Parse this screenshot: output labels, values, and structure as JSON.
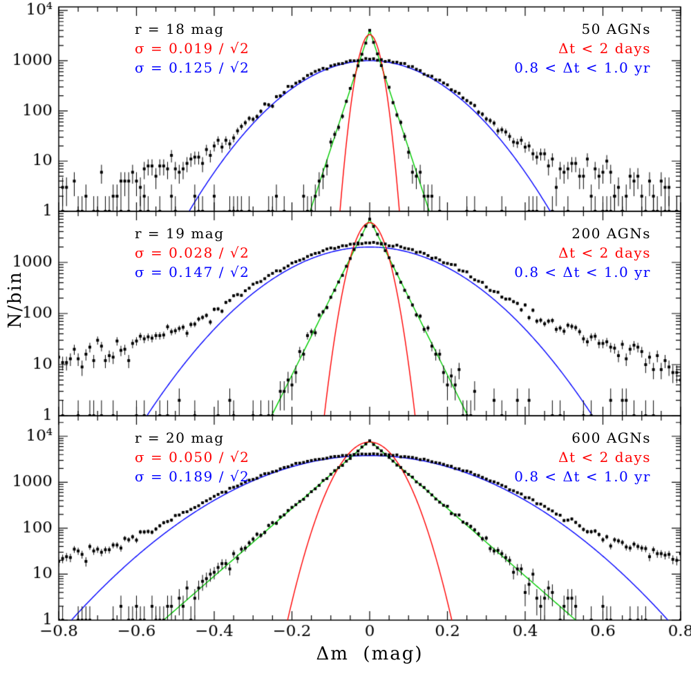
{
  "figure": {
    "background": "#ffffff",
    "description": "Histograms of AGN magnitude differences at short and long time lags with Gaussian/exponential fits, three magnitude bins, log y-axes"
  },
  "chart_data": {
    "type": "scatter",
    "subtype": "log-histogram-with-fit-curves",
    "xlabel": "Δm  (mag)",
    "ylabel": "N/bin",
    "xlim": [
      -0.8,
      0.8
    ],
    "bin_width": 0.01,
    "x_major_tick_step": 0.2,
    "x_minor_tick_step": 0.05,
    "xtick_values": [
      -0.8,
      -0.6,
      -0.4,
      -0.2,
      0,
      0.2,
      0.4,
      0.6,
      0.8
    ],
    "xtick_labels": [
      "−0.8",
      "−0.6",
      "−0.4",
      "−0.2",
      "0",
      "0.2",
      "0.4",
      "0.6",
      "0.8"
    ],
    "colors": {
      "data_points": "#000000",
      "short_lag_gaussian_fit": "#ff0000",
      "short_lag_exponential_fit": "#00cc00",
      "long_lag_gaussian_fit": "#0000ff"
    },
    "panels": [
      {
        "name": "r-18-mag",
        "ylim": [
          1,
          11750
        ],
        "ytick_labels": [
          {
            "value": 10000,
            "label": "10⁴"
          },
          {
            "value": 1000,
            "label": "1000"
          },
          {
            "value": 100,
            "label": "100"
          },
          {
            "value": 10,
            "label": "10"
          },
          {
            "value": 1,
            "label": "1"
          }
        ],
        "annotations_left": [
          {
            "text": "r = 18 mag",
            "color": "#000000"
          },
          {
            "text": "σ = 0.019 / √2",
            "color": "#ff0000"
          },
          {
            "text": "σ = 0.125 / √2",
            "color": "#0000ff"
          }
        ],
        "annotations_right": [
          {
            "text": "50 AGNs",
            "color": "#000000"
          },
          {
            "text": "Δt < 2 days",
            "color": "#ff0000"
          },
          {
            "text": "0.8 < Δt < 1.0 yr",
            "color": "#0000ff"
          }
        ],
        "curves": [
          {
            "id": "long-lag-gaussian",
            "color": "#0000ff",
            "type": "gaussian",
            "peak": 1000,
            "sigma": 0.125
          },
          {
            "id": "short-lag-exponential",
            "color": "#00cc00",
            "type": "laplace",
            "peak": 4000,
            "scale": 0.0185
          },
          {
            "id": "short-lag-gaussian",
            "color": "#ff0000",
            "type": "gaussian",
            "peak": 3300,
            "sigma": 0.019
          }
        ],
        "histograms": [
          {
            "id": "long-lag-data",
            "seed": 101,
            "model": {
              "gaussian": {
                "peak": 1000,
                "sigma": 0.125
              },
              "wing": {
                "peak": 70,
                "scale": 0.22
              },
              "floor": 0.05
            }
          },
          {
            "id": "short-lag-data",
            "seed": 202,
            "model": {
              "laplace": {
                "peak": 4000,
                "scale": 0.0185
              },
              "floor": 0.35
            }
          }
        ]
      },
      {
        "name": "r-19-mag",
        "ylim": [
          1,
          10000
        ],
        "ytick_labels": [
          {
            "value": 1000,
            "label": "1000"
          },
          {
            "value": 100,
            "label": "100"
          },
          {
            "value": 10,
            "label": "10"
          },
          {
            "value": 1,
            "label": "1"
          }
        ],
        "annotations_left": [
          {
            "text": "r = 19 mag",
            "color": "#000000"
          },
          {
            "text": "σ = 0.028 / √2",
            "color": "#ff0000"
          },
          {
            "text": "σ = 0.147 / √2",
            "color": "#0000ff"
          }
        ],
        "annotations_right": [
          {
            "text": "200 AGNs",
            "color": "#000000"
          },
          {
            "text": "Δt < 2 days",
            "color": "#ff0000"
          },
          {
            "text": "0.8 < Δt < 1.0 yr",
            "color": "#0000ff"
          }
        ],
        "curves": [
          {
            "id": "long-lag-gaussian",
            "color": "#0000ff",
            "type": "gaussian",
            "peak": 2000,
            "sigma": 0.147
          },
          {
            "id": "short-lag-exponential",
            "color": "#00cc00",
            "type": "laplace",
            "peak": 7000,
            "scale": 0.0285
          },
          {
            "id": "short-lag-gaussian",
            "color": "#ff0000",
            "type": "gaussian",
            "peak": 6000,
            "sigma": 0.028
          }
        ],
        "histograms": [
          {
            "id": "long-lag-data",
            "seed": 303,
            "model": {
              "gaussian": {
                "peak": 2000,
                "sigma": 0.147
              },
              "wing": {
                "peak": 400,
                "scale": 0.22
              },
              "floor": 0.05
            }
          },
          {
            "id": "short-lag-data",
            "seed": 404,
            "model": {
              "laplace": {
                "peak": 7000,
                "scale": 0.0285
              },
              "floor": 0.35
            }
          }
        ]
      },
      {
        "name": "r-20-mag",
        "ylim": [
          1,
          28000
        ],
        "ytick_labels": [
          {
            "value": 10000,
            "label": "10⁴"
          },
          {
            "value": 1000,
            "label": "1000"
          },
          {
            "value": 100,
            "label": "100"
          },
          {
            "value": 10,
            "label": "10"
          },
          {
            "value": 1,
            "label": "1"
          }
        ],
        "annotations_left": [
          {
            "text": "r = 20 mag",
            "color": "#000000"
          },
          {
            "text": "σ = 0.050 / √2",
            "color": "#ff0000"
          },
          {
            "text": "σ = 0.189 / √2",
            "color": "#0000ff"
          }
        ],
        "annotations_right": [
          {
            "text": "600 AGNs",
            "color": "#000000"
          },
          {
            "text": "Δt < 2 days",
            "color": "#ff0000"
          },
          {
            "text": "0.8 < Δt < 1.0 yr",
            "color": "#0000ff"
          }
        ],
        "curves": [
          {
            "id": "long-lag-gaussian",
            "color": "#0000ff",
            "type": "gaussian",
            "peak": 3800,
            "sigma": 0.189
          },
          {
            "id": "short-lag-exponential",
            "color": "#00cc00",
            "type": "laplace",
            "peak": 8000,
            "scale": 0.059
          },
          {
            "id": "short-lag-gaussian",
            "color": "#ff0000",
            "type": "gaussian",
            "peak": 7500,
            "sigma": 0.05
          }
        ],
        "histograms": [
          {
            "id": "long-lag-data",
            "seed": 505,
            "model": {
              "gaussian": {
                "peak": 3800,
                "sigma": 0.189
              },
              "wing": {
                "peak": 300,
                "scale": 0.3
              },
              "floor": 0.05
            }
          },
          {
            "id": "short-lag-data",
            "seed": 606,
            "model": {
              "laplace": {
                "peak": 8000,
                "scale": 0.059
              },
              "floor": 0.3
            }
          }
        ]
      }
    ]
  }
}
